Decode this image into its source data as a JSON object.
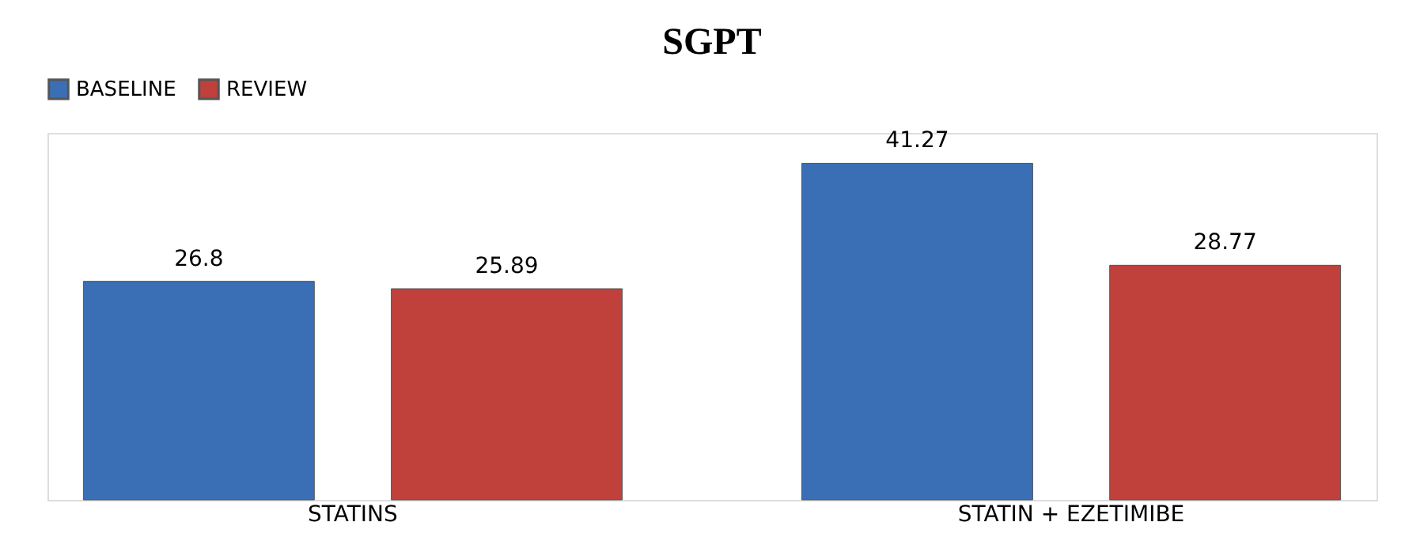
{
  "chart_data": {
    "type": "bar",
    "title": "SGPT",
    "categories": [
      "STATINS",
      "STATIN + EZETIMIBE"
    ],
    "series": [
      {
        "name": "BASELINE",
        "color": "#3a6fb5",
        "values": [
          26.8,
          41.27
        ]
      },
      {
        "name": "REVIEW",
        "color": "#c0403c",
        "values": [
          25.89,
          28.77
        ]
      }
    ],
    "ylim": [
      0,
      45
    ],
    "data_labels": true,
    "legend": "top",
    "grid": false,
    "tick_labels": "x"
  }
}
